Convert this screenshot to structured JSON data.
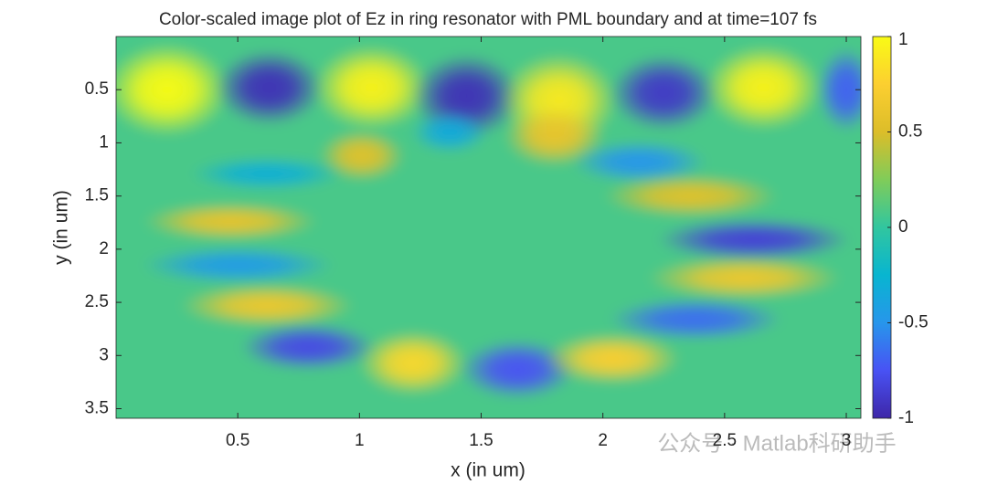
{
  "chart_data": {
    "type": "heatmap",
    "title": "Color-scaled image plot of Ez in ring resonator with PML boundary and at time=107 fs",
    "x_label": "x (in um)",
    "y_label": "y (in um)",
    "xlim": [
      0,
      3.06
    ],
    "ylim": [
      0,
      3.59
    ],
    "y_reversed": true,
    "xticks": [
      0.5,
      1,
      1.5,
      2,
      2.5,
      3
    ],
    "yticks": [
      0.5,
      1,
      1.5,
      2,
      2.5,
      3,
      3.5
    ],
    "clim": [
      -1,
      1
    ],
    "cticks": [
      -1,
      -0.5,
      0,
      0.5,
      1
    ],
    "colormap": [
      "#3e26a8",
      "#4852f4",
      "#2796eb",
      "#08b5d0",
      "#31c69f",
      "#80cc59",
      "#dcbd29",
      "#fccf30",
      "#f9fb15"
    ],
    "background_value": 0.08,
    "peaks": [
      {
        "x": 0.21,
        "y": 0.5,
        "value": 1,
        "width": 0.32,
        "height": 0.55
      },
      {
        "x": 0.63,
        "y": 0.48,
        "value": -0.95,
        "width": 0.28,
        "height": 0.45
      },
      {
        "x": 1.05,
        "y": 0.48,
        "value": 0.95,
        "width": 0.3,
        "height": 0.5
      },
      {
        "x": 1.44,
        "y": 0.56,
        "value": -0.95,
        "width": 0.28,
        "height": 0.5
      },
      {
        "x": 1.82,
        "y": 0.6,
        "value": 0.9,
        "width": 0.3,
        "height": 0.55
      },
      {
        "x": 2.25,
        "y": 0.53,
        "value": -0.9,
        "width": 0.28,
        "height": 0.45
      },
      {
        "x": 2.66,
        "y": 0.48,
        "value": 0.95,
        "width": 0.3,
        "height": 0.5
      },
      {
        "x": 3.0,
        "y": 0.5,
        "value": -0.7,
        "width": 0.15,
        "height": 0.5
      },
      {
        "x": 1.01,
        "y": 1.12,
        "value": 0.55,
        "width": 0.22,
        "height": 0.3
      },
      {
        "x": 1.8,
        "y": 0.94,
        "value": 0.6,
        "width": 0.26,
        "height": 0.35
      },
      {
        "x": 1.37,
        "y": 0.9,
        "value": -0.35,
        "width": 0.2,
        "height": 0.25
      },
      {
        "x": 0.62,
        "y": 1.29,
        "value": -0.3,
        "width": 0.4,
        "height": 0.2
      },
      {
        "x": 2.15,
        "y": 1.18,
        "value": -0.5,
        "width": 0.35,
        "height": 0.25
      },
      {
        "x": 2.36,
        "y": 1.5,
        "value": 0.55,
        "width": 0.45,
        "height": 0.25
      },
      {
        "x": 0.47,
        "y": 1.74,
        "value": 0.6,
        "width": 0.45,
        "height": 0.22
      },
      {
        "x": 0.5,
        "y": 2.15,
        "value": -0.45,
        "width": 0.5,
        "height": 0.22
      },
      {
        "x": 2.62,
        "y": 1.91,
        "value": -0.85,
        "width": 0.5,
        "height": 0.25
      },
      {
        "x": 2.58,
        "y": 2.27,
        "value": 0.65,
        "width": 0.5,
        "height": 0.25
      },
      {
        "x": 0.62,
        "y": 2.53,
        "value": 0.65,
        "width": 0.45,
        "height": 0.25
      },
      {
        "x": 2.38,
        "y": 2.66,
        "value": -0.65,
        "width": 0.45,
        "height": 0.25
      },
      {
        "x": 0.79,
        "y": 2.92,
        "value": -0.8,
        "width": 0.35,
        "height": 0.28
      },
      {
        "x": 1.22,
        "y": 3.07,
        "value": 0.8,
        "width": 0.28,
        "height": 0.38
      },
      {
        "x": 1.65,
        "y": 3.13,
        "value": -0.75,
        "width": 0.3,
        "height": 0.35
      },
      {
        "x": 2.04,
        "y": 3.03,
        "value": 0.75,
        "width": 0.35,
        "height": 0.3
      }
    ],
    "watermark": "公众号 · Matlab科研助手"
  }
}
